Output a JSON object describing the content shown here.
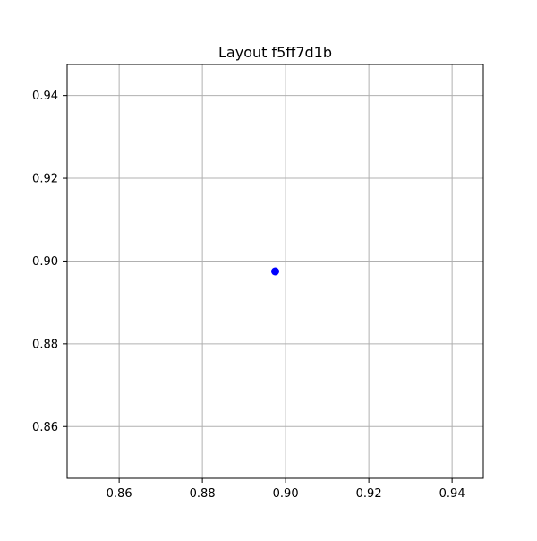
{
  "chart_data": {
    "type": "scatter",
    "title": "Layout f5ff7d1b",
    "xlabel": "",
    "ylabel": "",
    "xlim": [
      0.8475,
      0.9475
    ],
    "ylim": [
      0.8475,
      0.9475
    ],
    "x_ticks": [
      0.86,
      0.88,
      0.9,
      0.92,
      0.94
    ],
    "y_ticks": [
      0.86,
      0.88,
      0.9,
      0.92,
      0.94
    ],
    "x_tick_labels": [
      "0.86",
      "0.88",
      "0.90",
      "0.92",
      "0.94"
    ],
    "y_tick_labels": [
      "0.86",
      "0.88",
      "0.90",
      "0.92",
      "0.94"
    ],
    "grid": true,
    "legend": "none",
    "series": [
      {
        "color": "#0000ff",
        "points": [
          {
            "x": 0.8975,
            "y": 0.8975
          }
        ]
      }
    ]
  }
}
